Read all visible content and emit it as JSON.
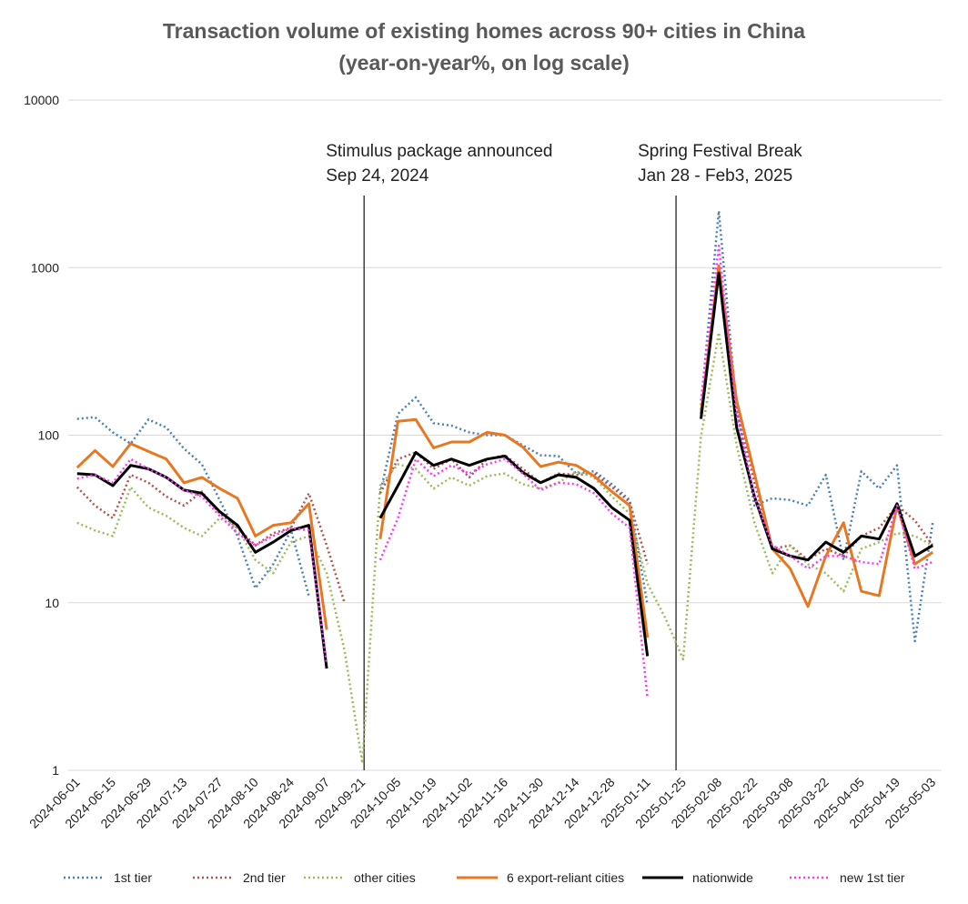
{
  "chart_data": {
    "type": "line",
    "title": [
      "Transaction volume of existing homes across 90+ cities in China",
      "(year-on-year%, on log scale)"
    ],
    "categories": [
      "2024-06-01",
      null,
      "2024-06-15",
      null,
      "2024-06-29",
      null,
      "2024-07-13",
      null,
      "2024-07-27",
      null,
      "2024-08-10",
      null,
      "2024-08-24",
      null,
      "2024-09-07",
      null,
      "2024-09-21",
      null,
      "2024-10-05",
      null,
      "2024-10-19",
      null,
      "2024-11-02",
      null,
      "2024-11-16",
      null,
      "2024-11-30",
      null,
      "2024-12-14",
      null,
      "2024-12-28",
      null,
      "2025-01-11",
      null,
      "2025-01-25",
      null,
      "2025-02-08",
      null,
      "2025-02-22",
      null,
      "2025-03-08",
      null,
      "2025-03-22",
      null,
      "2025-04-05",
      null,
      "2025-04-19",
      null,
      "2025-05-03"
    ],
    "log_scale": true,
    "ylim": [
      1,
      10000
    ],
    "yticks": [
      1,
      10,
      100,
      1000,
      10000
    ],
    "grid": true,
    "legend": "bottom",
    "annotations": [
      {
        "lines": [
          "Stimulus package announced",
          "Sep 24, 2024"
        ],
        "at": 16.1
      },
      {
        "lines": [
          "Spring Festival Break",
          "Jan 28 - Feb3, 2025"
        ],
        "at": 33.6
      }
    ],
    "series": [
      {
        "name": "1st tier",
        "color": "#4a7fb5",
        "style": "dotted",
        "values": [
          125,
          128,
          104,
          89,
          124,
          111,
          83,
          67,
          41,
          25,
          12.2,
          17,
          27,
          11,
          null,
          null,
          null,
          45,
          134,
          168,
          118,
          114,
          104,
          100,
          100,
          87,
          76,
          75,
          59,
          61,
          51,
          41,
          9.7,
          null,
          null,
          151,
          2180,
          143,
          38,
          42,
          41,
          38,
          58,
          18,
          61,
          48,
          66,
          5.9,
          30
        ]
      },
      {
        "name": "2nd tier",
        "color": "#b5504a",
        "style": "dotted",
        "values": [
          49,
          38,
          32,
          58,
          52,
          43,
          38,
          46,
          34,
          28,
          22,
          26,
          28,
          45,
          22,
          10,
          null,
          45,
          72,
          79,
          63,
          72,
          56,
          72,
          76,
          63,
          52,
          59,
          58,
          59,
          49,
          40,
          17,
          null,
          null,
          142,
          930,
          150,
          52,
          21,
          22,
          18,
          21,
          19,
          25,
          28,
          38,
          31,
          22
        ]
      },
      {
        "name": "other cities",
        "color": "#9bbb59",
        "style": "dotted",
        "values": [
          30,
          27,
          25,
          49,
          37,
          33,
          28,
          25,
          32,
          28,
          18,
          15,
          23,
          25,
          15,
          5.2,
          1.1,
          50,
          67,
          63,
          48,
          56,
          50,
          57,
          59,
          51,
          48,
          52,
          61,
          56,
          43,
          34,
          13,
          8.1,
          4.6,
          98,
          410,
          87,
          30,
          15,
          22,
          17,
          15,
          11.7,
          21,
          23,
          26,
          25,
          22
        ]
      },
      {
        "name": "6 export-reliant cities",
        "color": "#e87722",
        "style": "solid",
        "values": [
          64,
          81,
          65,
          89,
          80,
          72,
          52,
          56,
          48,
          42,
          25,
          29,
          30,
          39,
          6.9,
          null,
          null,
          24,
          121,
          124,
          84,
          91,
          91,
          104,
          100,
          85,
          65,
          69,
          66,
          57,
          46,
          38,
          6.2,
          null,
          null,
          134,
          1027,
          161,
          59,
          21,
          16,
          9.5,
          19,
          30,
          11.7,
          11,
          38,
          17,
          20
        ]
      },
      {
        "name": "nationwide",
        "color": "#000000",
        "style": "solid",
        "values": [
          59,
          58,
          50,
          66,
          63,
          56,
          47,
          45,
          35,
          29,
          20,
          23,
          27,
          29,
          4.05,
          null,
          null,
          32,
          50,
          79,
          66,
          72,
          66,
          72,
          75,
          60,
          52,
          58,
          56,
          48,
          37,
          31,
          4.8,
          null,
          null,
          125,
          929,
          111,
          43,
          21,
          19,
          18,
          23,
          20,
          25,
          24,
          39,
          19,
          22
        ]
      },
      {
        "name": "new 1st tier",
        "color": "#ff33ff",
        "style": "dotted",
        "values": [
          55,
          58,
          52,
          72,
          63,
          56,
          47,
          43,
          33,
          26,
          22,
          25,
          28,
          27,
          4.3,
          null,
          null,
          18,
          32,
          72,
          57,
          66,
          59,
          67,
          72,
          59,
          47,
          52,
          51,
          45,
          34,
          28,
          2.7,
          null,
          null,
          161,
          1350,
          134,
          43,
          22,
          19,
          16,
          19,
          19,
          17.5,
          17,
          38,
          16,
          17.5
        ]
      }
    ]
  }
}
